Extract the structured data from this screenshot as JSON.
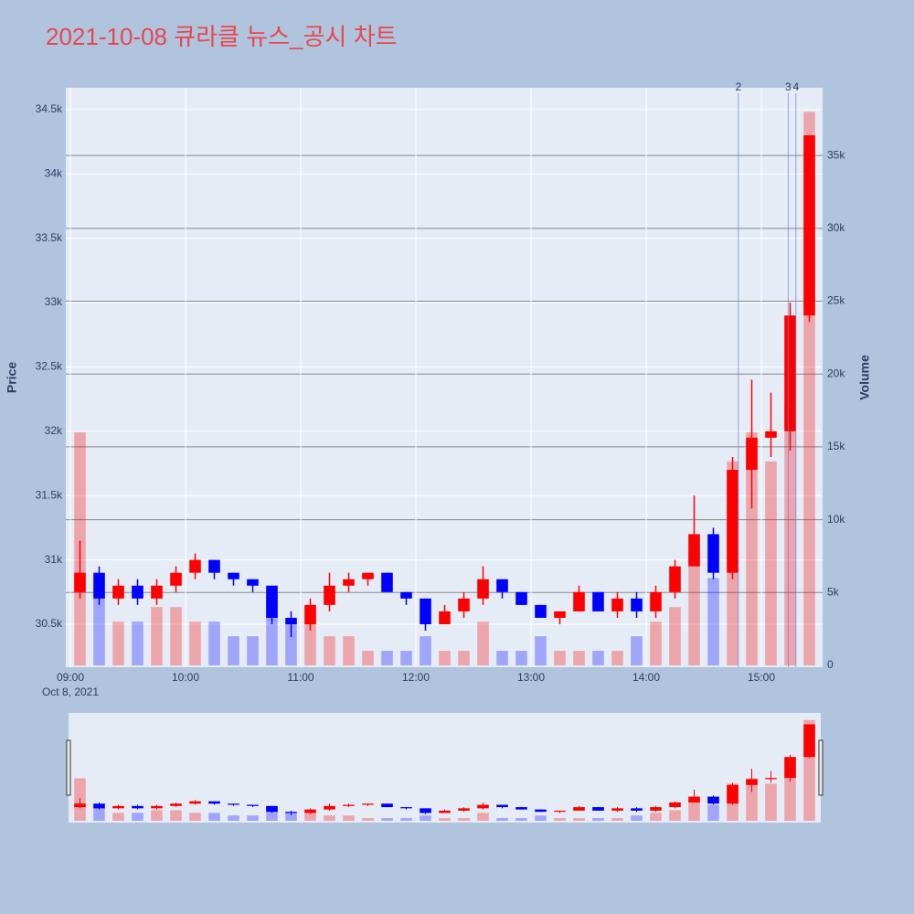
{
  "chart_data": {
    "type": "candlestick",
    "title": "2021-10-08 큐라클 뉴스_공시 차트",
    "y_label": "Price",
    "y2_label": "Volume",
    "x_date_label": "Oct 8, 2021",
    "increasing_color": "#ff0000",
    "decreasing_color": "#0000ff",
    "x": [
      "09:00",
      "09:10",
      "09:20",
      "09:30",
      "09:40",
      "09:50",
      "10:00",
      "10:10",
      "10:20",
      "10:30",
      "10:40",
      "10:50",
      "11:00",
      "11:10",
      "11:20",
      "11:30",
      "11:40",
      "11:50",
      "12:00",
      "12:10",
      "12:20",
      "12:30",
      "12:40",
      "12:50",
      "13:00",
      "13:10",
      "13:20",
      "13:30",
      "13:40",
      "13:50",
      "14:00",
      "14:10",
      "14:20",
      "14:30",
      "14:40",
      "14:50",
      "15:00",
      "15:10",
      "15:20"
    ],
    "open": [
      30750,
      30900,
      30700,
      30800,
      30700,
      30800,
      30900,
      31000,
      30900,
      30850,
      30800,
      30550,
      30500,
      30650,
      30800,
      30850,
      30900,
      30750,
      30700,
      30500,
      30600,
      30700,
      30850,
      30750,
      30650,
      30550,
      30600,
      30750,
      30600,
      30700,
      30600,
      30750,
      30950,
      31200,
      30900,
      31700,
      31950,
      32000,
      32900
    ],
    "high": [
      31150,
      30950,
      30850,
      30850,
      30850,
      30950,
      31050,
      31000,
      30900,
      30850,
      30800,
      30600,
      30700,
      30900,
      30900,
      30900,
      30900,
      30750,
      30700,
      30650,
      30750,
      30950,
      30850,
      30750,
      30650,
      30600,
      30800,
      30750,
      30750,
      30750,
      30800,
      31000,
      31500,
      31250,
      31800,
      32400,
      32300,
      33000,
      34300
    ],
    "low": [
      30700,
      30650,
      30650,
      30650,
      30650,
      30750,
      30850,
      30850,
      30800,
      30750,
      30500,
      30400,
      30450,
      30600,
      30750,
      30800,
      30750,
      30650,
      30450,
      30500,
      30550,
      30650,
      30700,
      30650,
      30550,
      30500,
      30600,
      30600,
      30550,
      30550,
      30550,
      30700,
      30950,
      30850,
      30850,
      31400,
      31800,
      31850,
      32850
    ],
    "close": [
      30900,
      30700,
      30800,
      30700,
      30800,
      30900,
      31000,
      30900,
      30850,
      30800,
      30550,
      30500,
      30650,
      30800,
      30850,
      30900,
      30750,
      30700,
      30500,
      30600,
      30700,
      30850,
      30750,
      30650,
      30550,
      30600,
      30750,
      30600,
      30700,
      30600,
      30750,
      30950,
      31200,
      30900,
      31700,
      31950,
      32000,
      32900,
      34300
    ],
    "volume": [
      16000,
      5000,
      3000,
      3000,
      4000,
      4000,
      3000,
      3000,
      2000,
      2000,
      5000,
      3000,
      3000,
      2000,
      2000,
      1000,
      1000,
      1000,
      2000,
      1000,
      1000,
      3000,
      1000,
      1000,
      2000,
      1000,
      1000,
      1000,
      1000,
      2000,
      3000,
      4000,
      8000,
      6000,
      14000,
      16000,
      14000,
      18000,
      38000
    ],
    "xlim": [
      "09:00",
      "15:30"
    ],
    "xticks": [
      "09:00",
      "10:00",
      "11:00",
      "12:00",
      "13:00",
      "14:00",
      "15:00"
    ],
    "ylim": [
      30166,
      34670
    ],
    "yticks": [
      {
        "value": 30500,
        "label": "30.5k"
      },
      {
        "value": 31000,
        "label": "31k"
      },
      {
        "value": 31500,
        "label": "31.5k"
      },
      {
        "value": 32000,
        "label": "32k"
      },
      {
        "value": 32500,
        "label": "32.5k"
      },
      {
        "value": 33000,
        "label": "33k"
      },
      {
        "value": 33500,
        "label": "33.5k"
      },
      {
        "value": 34000,
        "label": "34k"
      },
      {
        "value": 34500,
        "label": "34.5k"
      }
    ],
    "y2lim": [
      0,
      39650
    ],
    "y2ticks": [
      0,
      {
        "value": 5000,
        "label": "5k"
      },
      {
        "value": 10000,
        "label": "10k"
      },
      {
        "value": 15000,
        "label": "15k"
      },
      {
        "value": 20000,
        "label": "20k"
      },
      {
        "value": 25000,
        "label": "25k"
      },
      {
        "value": 30000,
        "label": "30k"
      },
      {
        "value": 35000,
        "label": "35k"
      }
    ],
    "annotations": [
      {
        "x": "14:48",
        "label": "2"
      },
      {
        "x": "15:14",
        "label": "3"
      },
      {
        "x": "15:18",
        "label": "4"
      }
    ]
  }
}
